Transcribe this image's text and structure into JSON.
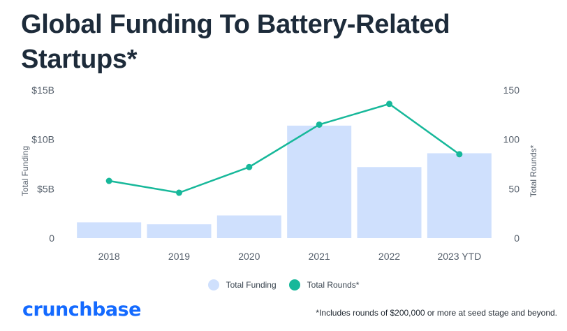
{
  "title": "Global Funding To Battery-Related Startups*",
  "legend": {
    "funding_label": "Total Funding",
    "rounds_label": "Total Rounds*"
  },
  "brand": "crunchbase",
  "footnote": "*Includes rounds of $200,000 or more at seed stage and beyond.",
  "colors": {
    "bar": "#cfe0fd",
    "line": "#17b89a",
    "title": "#1d2b3a",
    "brand": "#146aff"
  },
  "chart_data": {
    "type": "bar",
    "categories": [
      "2018",
      "2019",
      "2020",
      "2021",
      "2022",
      "2023 YTD"
    ],
    "series": [
      {
        "name": "Total Funding",
        "type": "bar",
        "axis": "left",
        "values": [
          1.6,
          1.4,
          2.3,
          11.4,
          7.2,
          8.6
        ]
      },
      {
        "name": "Total Rounds*",
        "type": "line",
        "axis": "right",
        "values": [
          58,
          46,
          72,
          115,
          136,
          85
        ]
      }
    ],
    "ylabel": "Total Funding",
    "y2label": "Total Rounds*",
    "ylim": [
      0,
      15
    ],
    "y2lim": [
      0,
      150
    ],
    "yticks": [
      "0",
      "$5B",
      "$10B",
      "$15B"
    ],
    "y2ticks": [
      "0",
      "50",
      "100",
      "150"
    ],
    "grid": false
  }
}
